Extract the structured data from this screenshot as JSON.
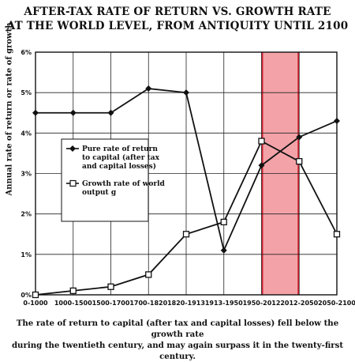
{
  "chart_data": {
    "type": "line",
    "title": [
      "AFTER-TAX RATE OF RETURN VS. GROWTH RATE",
      "AT THE WORLD LEVEL, FROM ANTIQUITY UNTIL 2100"
    ],
    "ylabel": "Annual rate of return or rate of growth",
    "xlabel": "",
    "categories": [
      "0-1000",
      "1000-1500",
      "1500-1700",
      "1700-1820",
      "1820-1913",
      "1913-1950",
      "1950-2012",
      "2012-2050",
      "2050-2100"
    ],
    "ylim": [
      0,
      6
    ],
    "yticks": [
      "0%",
      "1%",
      "2%",
      "3%",
      "4%",
      "5%",
      "6%"
    ],
    "grid": true,
    "legend_placement": "center-left",
    "highlight_band": {
      "from": "1950-2012",
      "to": "2012-2050",
      "color": "#f3a3a8"
    },
    "series": [
      {
        "name": "Pure rate of return to capital (after tax and capital losses)",
        "marker": "filled-diamond",
        "values": [
          4.5,
          4.5,
          4.5,
          5.1,
          5.0,
          1.1,
          3.2,
          3.9,
          4.3
        ]
      },
      {
        "name": "Growth rate of world output g",
        "marker": "open-square",
        "values": [
          0.0,
          0.1,
          0.2,
          0.5,
          1.5,
          1.8,
          3.8,
          3.3,
          1.5
        ]
      }
    ],
    "legend_lines": [
      [
        "Pure rate of return",
        "to capital (after tax",
        "and capital losses)"
      ],
      [
        "Growth rate of world",
        "output g"
      ]
    ]
  },
  "caption": [
    "The rate of return to capital (after tax and capital losses) fell below the growth rate",
    "during the twentieth century, and may again surpass it in the twenty-first century."
  ]
}
